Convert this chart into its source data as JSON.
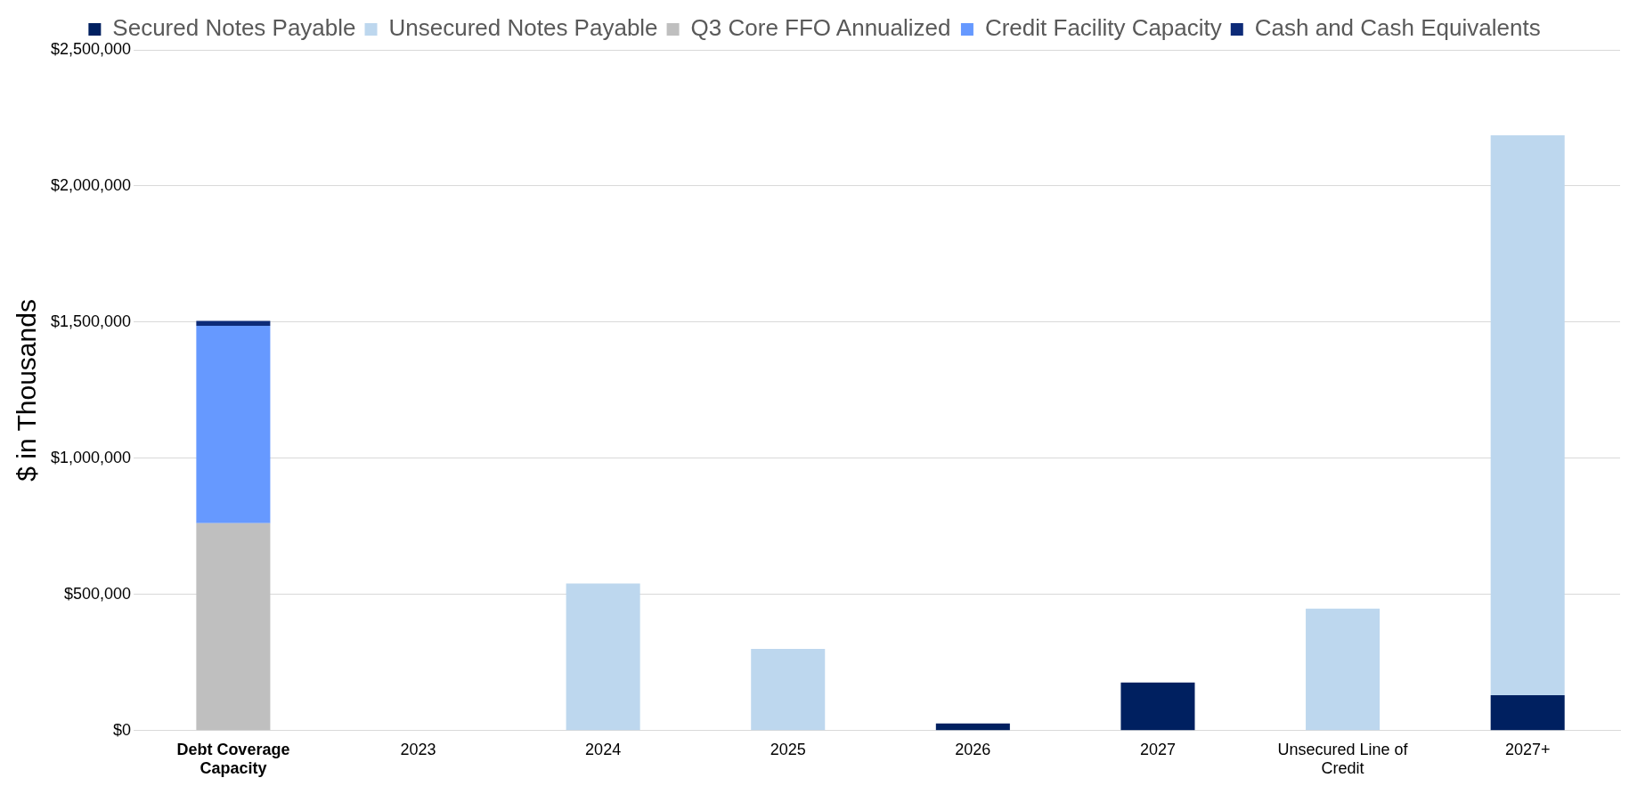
{
  "chart_data": {
    "type": "bar",
    "stacked": true,
    "ylabel": "$ in Thousands",
    "categories": [
      "Debt Coverage Capacity",
      "2023",
      "2024",
      "2025",
      "2026",
      "2027",
      "Unsecured Line of Credit",
      "2027+"
    ],
    "series": [
      {
        "name": "Secured Notes Payable",
        "color": "#002060",
        "values": [
          null,
          null,
          null,
          null,
          26000,
          177000,
          null,
          130000
        ]
      },
      {
        "name": "Unsecured Notes Payable",
        "color": "#bdd7ee",
        "values": [
          null,
          null,
          540000,
          300000,
          null,
          null,
          448000,
          2056000
        ]
      },
      {
        "name": "Q3 Core FFO Annualized",
        "color": "#bfbfbf",
        "values": [
          762000,
          null,
          null,
          null,
          null,
          null,
          null,
          null
        ]
      },
      {
        "name": "Credit Facility Capacity",
        "color": "#6699ff",
        "values": [
          725000,
          null,
          null,
          null,
          null,
          null,
          null,
          null
        ]
      },
      {
        "name": "Cash and Cash Equivalents",
        "color": "#0d2b78",
        "values": [
          18000,
          null,
          null,
          null,
          null,
          null,
          null,
          null
        ]
      }
    ],
    "ylim": [
      0,
      2500000
    ],
    "yticks": [
      {
        "value": 0,
        "label": "$0"
      },
      {
        "value": 500000,
        "label": "$500,000"
      },
      {
        "value": 1000000,
        "label": "$1,000,000"
      },
      {
        "value": 1500000,
        "label": "$1,500,000"
      },
      {
        "value": 2000000,
        "label": "$2,000,000"
      },
      {
        "value": 2500000,
        "label": "$2,500,000"
      }
    ],
    "grid": "y",
    "legend": "top"
  }
}
